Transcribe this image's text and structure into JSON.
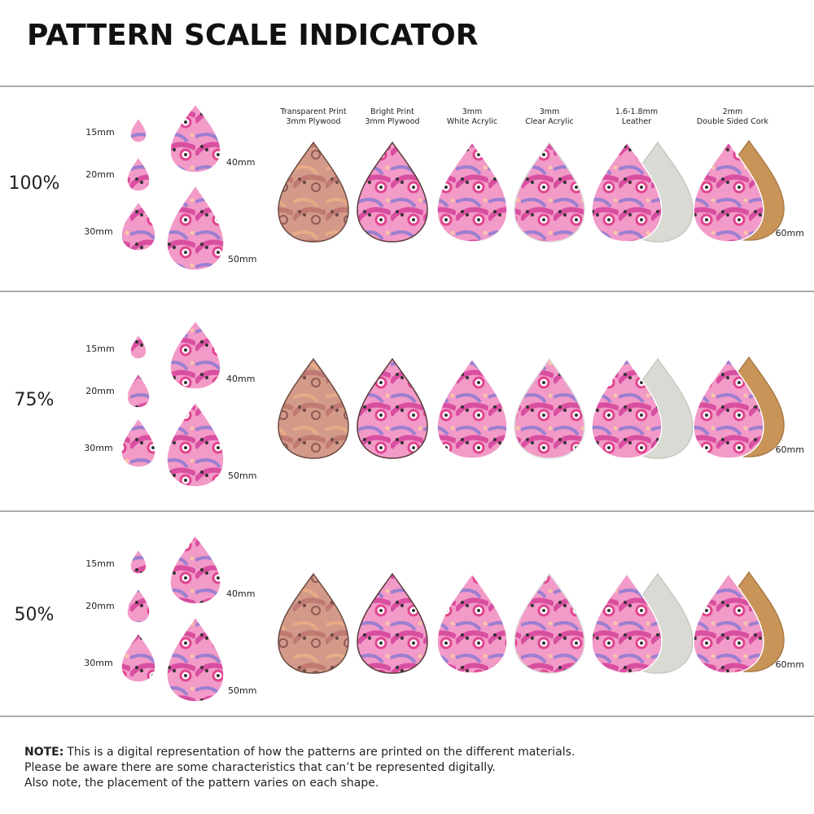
{
  "title": "PATTERN SCALE INDICATOR",
  "materials": [
    {
      "line1": "Transparent Print",
      "line2": "3mm Plywood"
    },
    {
      "line1": "Bright Print",
      "line2": "3mm Plywood"
    },
    {
      "line1": "3mm",
      "line2": "White Acrylic"
    },
    {
      "line1": "3mm",
      "line2": "Clear Acrylic"
    },
    {
      "line1": "1.6-1.8mm",
      "line2": "Leather"
    },
    {
      "line1": "2mm",
      "line2": "Double Sided Cork"
    }
  ],
  "rows": [
    {
      "scale": "100%",
      "sizes": [
        "15mm",
        "20mm",
        "30mm",
        "40mm",
        "50mm"
      ],
      "material_size": "60mm"
    },
    {
      "scale": "75%",
      "sizes": [
        "15mm",
        "20mm",
        "30mm",
        "40mm",
        "50mm"
      ],
      "material_size": "60mm"
    },
    {
      "scale": "50%",
      "sizes": [
        "15mm",
        "20mm",
        "30mm",
        "40mm",
        "50mm"
      ],
      "material_size": "60mm"
    }
  ],
  "note": {
    "label": "NOTE:",
    "lines": [
      "This is a digital representation of how the patterns are printed on the different materials.",
      "Please be aware there are some characteristics that can’t be represented digitally.",
      "Also note, the placement of the pattern varies on each shape."
    ]
  }
}
